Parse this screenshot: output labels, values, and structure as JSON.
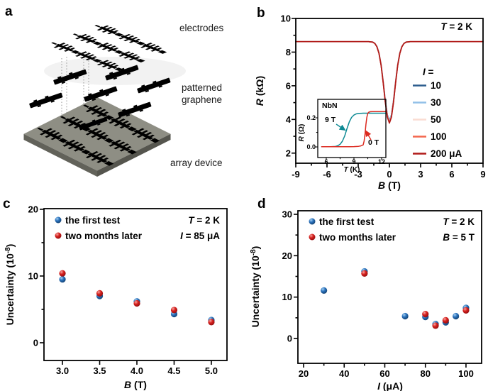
{
  "panels": {
    "a": {
      "letter": "a",
      "labels": {
        "electrodes": "electrodes",
        "graphene_line1": "patterned",
        "graphene_line2": "graphene",
        "array_device": "array device"
      },
      "colors": {
        "electrodes_gold": "#b39e45",
        "graphene_blue": "#3f83c4",
        "chip_gray": "#8e8e84"
      }
    },
    "b": {
      "letter": "b"
    },
    "c": {
      "letter": "c"
    },
    "d": {
      "letter": "d"
    }
  },
  "chart_data": [
    {
      "id": "b_main",
      "type": "line",
      "xlabel_var": "B",
      "xlabel_unit": " (T)",
      "ylabel_var": "R",
      "ylabel_unit": " (kΩ)",
      "xlim": [
        -9,
        9
      ],
      "ylim": [
        1.4,
        10
      ],
      "xticks": [
        {
          "v": -9,
          "label": "-9"
        },
        {
          "v": -6,
          "label": "-6"
        },
        {
          "v": -3,
          "label": "-3"
        },
        {
          "v": 0,
          "label": "0"
        },
        {
          "v": 3,
          "label": "3"
        },
        {
          "v": 6,
          "label": "6"
        },
        {
          "v": 9,
          "label": "9"
        }
      ],
      "yticks": [
        {
          "v": 10,
          "label": "10"
        },
        {
          "v": 8,
          "label": "8"
        },
        {
          "v": 6,
          "label": "6"
        },
        {
          "v": 4,
          "label": "4"
        },
        {
          "v": 2,
          "label": "2"
        }
      ],
      "xminor": [
        -7.5,
        -4.5,
        -1.5,
        1.5,
        4.5,
        7.5
      ],
      "yminor": [
        3,
        5,
        7,
        9
      ],
      "annotation": {
        "var": "T",
        "rest": " = 2 K"
      },
      "legend_title": {
        "var": "I",
        "rest": " ="
      },
      "x": [
        -9,
        -8,
        -7,
        -6,
        -5,
        -4,
        -3,
        -2.6,
        -2.2,
        -2,
        -1.8,
        -1.6,
        -1.4,
        -1.2,
        -1,
        -0.8,
        -0.6,
        -0.4,
        -0.2,
        0,
        0.2,
        0.4,
        0.6,
        0.8,
        1,
        1.2,
        1.4,
        1.6,
        1.8,
        2,
        2.2,
        2.6,
        3,
        4,
        5,
        6,
        7,
        8,
        9
      ],
      "series": [
        {
          "label": "10",
          "color": "#2e5f8f",
          "y": [
            8.62,
            8.62,
            8.62,
            8.62,
            8.62,
            8.62,
            8.62,
            8.62,
            8.62,
            8.62,
            8.61,
            8.6,
            8.52,
            8.34,
            7.95,
            7.26,
            6.27,
            5.17,
            4.27,
            3.92,
            4.27,
            5.17,
            6.27,
            7.26,
            7.95,
            8.34,
            8.52,
            8.6,
            8.61,
            8.62,
            8.62,
            8.62,
            8.62,
            8.62,
            8.62,
            8.62,
            8.62,
            8.62,
            8.62
          ]
        },
        {
          "label": "30",
          "color": "#92c0e8",
          "y": [
            8.62,
            8.62,
            8.62,
            8.62,
            8.62,
            8.62,
            8.62,
            8.62,
            8.62,
            8.62,
            8.61,
            8.6,
            8.52,
            8.33,
            7.94,
            7.24,
            6.25,
            5.13,
            4.23,
            3.88,
            4.23,
            5.13,
            6.25,
            7.24,
            7.94,
            8.33,
            8.52,
            8.6,
            8.61,
            8.62,
            8.62,
            8.62,
            8.62,
            8.62,
            8.62,
            8.62,
            8.62,
            8.62,
            8.62
          ]
        },
        {
          "label": "50",
          "color": "#fadcd2",
          "y": [
            8.62,
            8.62,
            8.62,
            8.62,
            8.62,
            8.62,
            8.62,
            8.62,
            8.62,
            8.62,
            8.61,
            8.59,
            8.52,
            8.33,
            7.93,
            7.23,
            6.23,
            5.1,
            4.19,
            3.84,
            4.19,
            5.1,
            6.23,
            7.23,
            7.93,
            8.33,
            8.52,
            8.59,
            8.61,
            8.62,
            8.62,
            8.62,
            8.62,
            8.62,
            8.62,
            8.62,
            8.62,
            8.62,
            8.62
          ]
        },
        {
          "label": "100",
          "color": "#f4674e",
          "y": [
            8.62,
            8.62,
            8.62,
            8.62,
            8.62,
            8.62,
            8.62,
            8.62,
            8.62,
            8.62,
            8.61,
            8.59,
            8.51,
            8.32,
            7.93,
            7.22,
            6.21,
            5.08,
            4.17,
            3.81,
            4.17,
            5.08,
            6.21,
            7.22,
            7.93,
            8.32,
            8.51,
            8.59,
            8.61,
            8.62,
            8.62,
            8.62,
            8.62,
            8.62,
            8.62,
            8.62,
            8.62,
            8.62,
            8.62
          ]
        },
        {
          "label": "200 μA",
          "color": "#b01a18",
          "y": [
            8.62,
            8.62,
            8.62,
            8.62,
            8.62,
            8.62,
            8.62,
            8.62,
            8.62,
            8.62,
            8.61,
            8.59,
            8.51,
            8.32,
            7.92,
            7.21,
            6.2,
            5.06,
            4.14,
            3.78,
            4.14,
            5.06,
            6.2,
            7.21,
            7.92,
            8.32,
            8.51,
            8.59,
            8.61,
            8.62,
            8.62,
            8.62,
            8.62,
            8.62,
            8.62,
            8.62,
            8.62,
            8.62,
            8.62
          ]
        }
      ]
    },
    {
      "id": "b_inset",
      "type": "line",
      "title": "NbN",
      "xlabel_var": "T",
      "xlabel_unit": " (K)",
      "ylabel_var": "R",
      "ylabel_unit": " (Ω)",
      "xlim": [
        5.08,
        12.46
      ],
      "ylim": [
        -0.073,
        0.327
      ],
      "xticks": [
        {
          "v": 6,
          "label": "6"
        },
        {
          "v": 9,
          "label": "9"
        },
        {
          "v": 12,
          "label": "12"
        }
      ],
      "yticks": [
        {
          "v": 0.2,
          "label": "0.2"
        },
        {
          "v": 0,
          "label": "0.0"
        }
      ],
      "xminor": [
        7.5,
        10.5
      ],
      "yminor": [
        0.1
      ],
      "series": [
        {
          "label": "9 T",
          "color": "#0e8a94",
          "x": [
            5.5,
            6,
            6.5,
            7,
            7.25,
            7.5,
            7.75,
            8,
            8.25,
            8.5,
            8.75,
            9,
            9.25,
            9.5,
            10,
            10.5,
            11,
            11.5,
            12,
            12.4
          ],
          "y": [
            0.001,
            0.001,
            0.001,
            0.003,
            0.008,
            0.018,
            0.039,
            0.076,
            0.126,
            0.173,
            0.203,
            0.219,
            0.227,
            0.23,
            0.232,
            0.232,
            0.232,
            0.232,
            0.232,
            0.232
          ]
        },
        {
          "label": "0 T",
          "color": "#dc2a20",
          "x": [
            5.5,
            6.5,
            7.5,
            8.5,
            9,
            9.5,
            9.75,
            10,
            10.1,
            10.2,
            10.3,
            10.4,
            10.5,
            10.6,
            10.75,
            11,
            11.5,
            12,
            12.4
          ],
          "y": [
            0.001,
            0.001,
            0.001,
            0.001,
            0.002,
            0.004,
            0.007,
            0.014,
            0.039,
            0.088,
            0.155,
            0.204,
            0.229,
            0.238,
            0.242,
            0.243,
            0.243,
            0.243,
            0.243
          ]
        }
      ]
    },
    {
      "id": "c",
      "type": "scatter",
      "xlabel_var": "B",
      "xlabel_unit": " (T)",
      "ylabel_pre": "Uncertainty (10",
      "ylabel_sup": "-8",
      "ylabel_post": ")",
      "xlim": [
        2.752,
        5.21
      ],
      "ylim": [
        -2.66,
        20.1
      ],
      "xticks": [
        {
          "v": 3,
          "label": "3.0"
        },
        {
          "v": 3.5,
          "label": "3.5"
        },
        {
          "v": 4,
          "label": "4.0"
        },
        {
          "v": 4.5,
          "label": "4.5"
        },
        {
          "v": 5,
          "label": "5.0"
        }
      ],
      "yticks": [
        {
          "v": 20,
          "label": "20"
        },
        {
          "v": 10,
          "label": "10"
        },
        {
          "v": 0,
          "label": "0"
        }
      ],
      "xminor": [],
      "yminor": [
        5,
        15
      ],
      "annotations": [
        {
          "var": "T",
          "rest": " = 2 K"
        },
        {
          "var": "I",
          "rest": " = 85 μA"
        }
      ],
      "x": [
        3.0,
        3.5,
        4.0,
        4.5,
        5.0
      ],
      "series": [
        {
          "label": "the first test",
          "color": "#1b63ab",
          "y": [
            9.5,
            7.0,
            6.2,
            4.3,
            3.4
          ]
        },
        {
          "label": "two months later",
          "color": "#c91418",
          "y": [
            10.4,
            7.4,
            5.9,
            4.9,
            3.1
          ]
        }
      ]
    },
    {
      "id": "d",
      "type": "scatter",
      "xlabel_var": "I",
      "xlabel_unit": " (μA)",
      "ylabel_pre": "Uncertainty (10",
      "ylabel_sup": "-8",
      "ylabel_post": ")",
      "xlim": [
        17.2,
        107.7
      ],
      "ylim": [
        -6,
        30.86
      ],
      "xticks": [
        {
          "v": 20,
          "label": "20"
        },
        {
          "v": 40,
          "label": "40"
        },
        {
          "v": 60,
          "label": "60"
        },
        {
          "v": 80,
          "label": "80"
        },
        {
          "v": 100,
          "label": "100"
        }
      ],
      "yticks": [
        {
          "v": 30,
          "label": "30"
        },
        {
          "v": 20,
          "label": "20"
        },
        {
          "v": 10,
          "label": "10"
        },
        {
          "v": 0,
          "label": "0"
        }
      ],
      "xminor": [
        30,
        50,
        70,
        90
      ],
      "yminor": [
        5,
        15,
        25
      ],
      "annotations": [
        {
          "var": "T",
          "rest": " = 2 K"
        },
        {
          "var": "B",
          "rest": " = 5 T"
        }
      ],
      "x": [
        30,
        50,
        70,
        80,
        85,
        90,
        95,
        100
      ],
      "series": [
        {
          "label": "the first test",
          "color": "#1b63ab",
          "y": [
            11.6,
            16.2,
            5.4,
            5.2,
            3.5,
            3.9,
            5.4,
            7.4
          ]
        },
        {
          "label": "two months later",
          "color": "#c91418",
          "y": [
            null,
            15.7,
            null,
            5.9,
            3.1,
            4.4,
            null,
            6.8
          ]
        }
      ]
    }
  ]
}
